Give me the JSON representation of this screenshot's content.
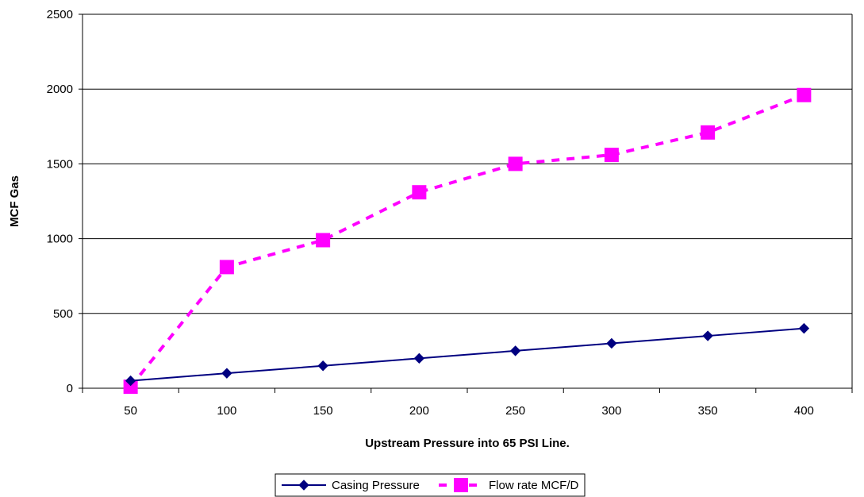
{
  "chart_data": {
    "type": "line",
    "categories": [
      "50",
      "100",
      "150",
      "200",
      "250",
      "300",
      "350",
      "400"
    ],
    "series": [
      {
        "name": "Casing Pressure",
        "values": [
          50,
          100,
          150,
          200,
          250,
          300,
          350,
          400
        ],
        "color": "#000080",
        "marker": "diamond",
        "line_style": "solid"
      },
      {
        "name": "Flow rate MCF/D",
        "values": [
          10,
          810,
          990,
          1310,
          1500,
          1560,
          1710,
          1960
        ],
        "color": "#ff00ff",
        "marker": "square",
        "line_style": "dashed"
      }
    ],
    "xlabel": "Upstream Pressure into 65 PSI Line.",
    "ylabel": "MCF Gas",
    "ylim": [
      0,
      2500
    ],
    "yticks": [
      "0",
      "500",
      "1000",
      "1500",
      "2000",
      "2500"
    ],
    "grid": "horizontal",
    "legend_position": "bottom"
  }
}
